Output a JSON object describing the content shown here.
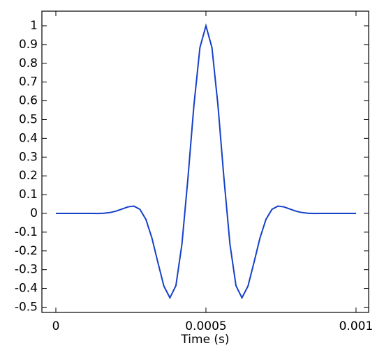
{
  "chart_data": {
    "type": "line",
    "xlabel": "Time (s)",
    "x": [
      0,
      2e-05,
      4e-05,
      6e-05,
      8e-05,
      0.0001,
      0.00012,
      0.00014,
      0.00016,
      0.00018,
      0.0002,
      0.00022,
      0.00024,
      0.00026,
      0.00028,
      0.0003,
      0.00032,
      0.00034,
      0.00036,
      0.00038,
      0.0004,
      0.00042,
      0.00044,
      0.00046,
      0.00048,
      0.0005,
      0.00052,
      0.00054,
      0.00056,
      0.00058,
      0.0006,
      0.00062,
      0.00064,
      0.00066,
      0.00068,
      0.0007,
      0.00072,
      0.00074,
      0.00076,
      0.00078,
      0.0008,
      0.00082,
      0.00084,
      0.00086,
      0.00088,
      0.0009,
      0.00092,
      0.00094,
      0.00096,
      0.00098,
      0.001
    ],
    "series": [
      {
        "color": "#1540c8",
        "values": [
          0,
          0,
          0,
          0,
          0,
          0,
          0,
          -0.0004,
          0.0008,
          0.0044,
          0.0117,
          0.0228,
          0.0345,
          0.0387,
          0.0216,
          -0.032,
          -0.131,
          -0.262,
          -0.388,
          -0.45,
          -0.385,
          -0.164,
          0.187,
          0.577,
          0.884,
          1,
          0.884,
          0.577,
          0.187,
          -0.164,
          -0.385,
          -0.45,
          -0.388,
          -0.262,
          -0.131,
          -0.032,
          0.0216,
          0.0387,
          0.0345,
          0.0228,
          0.0117,
          0.0044,
          0.0008,
          -0.0004,
          0,
          0,
          0,
          0,
          0,
          0,
          0
        ]
      }
    ],
    "xlim": [
      -4.65e-05,
      0.001042
    ],
    "ylim": [
      -0.528,
      1.078
    ],
    "xticks": [
      0,
      0.0005,
      0.001
    ],
    "yticks": [
      -0.5,
      -0.4,
      -0.3,
      -0.2,
      -0.1,
      0,
      0.1,
      0.2,
      0.3,
      0.4,
      0.5,
      0.6,
      0.7,
      0.8,
      0.9,
      1
    ]
  }
}
